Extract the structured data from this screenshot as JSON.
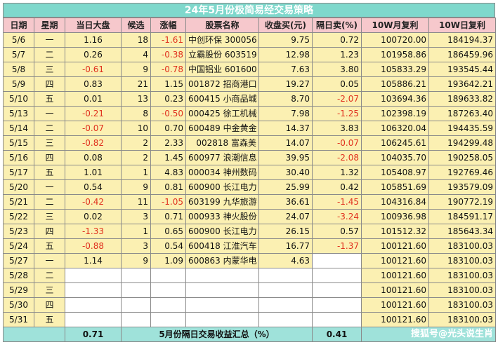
{
  "title": "24年5月份极简易经交易策略",
  "headers": [
    "日期",
    "星期",
    "当日大盘",
    "候选",
    "涨幅",
    "股票名称",
    "收盘买(元)",
    "隔日卖(%)",
    "10W月复利",
    "10W日复利"
  ],
  "rows": [
    {
      "date": "5/6",
      "weekday": "一",
      "market": "1.16",
      "candidates": "18",
      "gain": "-1.61",
      "stock": "中创环保 300056",
      "buy": "9.75",
      "sell": "0.72",
      "monthly": "100720.00",
      "daily": "184194.37"
    },
    {
      "date": "5/7",
      "weekday": "二",
      "market": "0.26",
      "candidates": "4",
      "gain": "-0.38",
      "stock": "立霸股份 603519",
      "buy": "12.98",
      "sell": "1.23",
      "monthly": "101958.86",
      "daily": "186459.96"
    },
    {
      "date": "5/8",
      "weekday": "三",
      "market": "-0.61",
      "candidates": "9",
      "gain": "-0.78",
      "stock": "中国铝业 601600",
      "buy": "7.63",
      "sell": "3.80",
      "monthly": "105833.29",
      "daily": "193545.44"
    },
    {
      "date": "5/9",
      "weekday": "四",
      "market": "0.83",
      "candidates": "21",
      "gain": "1.15",
      "stock": "001872 招商港口",
      "buy": "19.27",
      "sell": "0.05",
      "monthly": "105886.21",
      "daily": "193642.21"
    },
    {
      "date": "5/10",
      "weekday": "五",
      "market": "0.01",
      "candidates": "13",
      "gain": "0.23",
      "stock": "600415 小商品城",
      "buy": "8.70",
      "sell": "-2.07",
      "monthly": "103694.36",
      "daily": "189633.82"
    },
    {
      "date": "5/13",
      "weekday": "一",
      "market": "-0.21",
      "candidates": "8",
      "gain": "-0.50",
      "stock": "000425 徐工机械",
      "buy": "7.98",
      "sell": "-1.25",
      "monthly": "102398.19",
      "daily": "187263.40"
    },
    {
      "date": "5/14",
      "weekday": "二",
      "market": "-0.07",
      "candidates": "10",
      "gain": "0.70",
      "stock": "600489 中金黄金",
      "buy": "14.37",
      "sell": "3.83",
      "monthly": "106320.04",
      "daily": "194435.59"
    },
    {
      "date": "5/15",
      "weekday": "三",
      "market": "-0.82",
      "candidates": "2",
      "gain": "2.33",
      "stock": "002818 富森美",
      "buy": "14.07",
      "sell": "-0.07",
      "monthly": "106245.61",
      "daily": "194299.48"
    },
    {
      "date": "5/16",
      "weekday": "四",
      "market": "0.08",
      "candidates": "2",
      "gain": "1.45",
      "stock": "600977 浪潮信息",
      "buy": "39.95",
      "sell": "-2.08",
      "monthly": "104035.70",
      "daily": "190258.05"
    },
    {
      "date": "5/17",
      "weekday": "五",
      "market": "1.01",
      "candidates": "1",
      "gain": "4.83",
      "stock": "000034 神州数码",
      "buy": "30.40",
      "sell": "1.32",
      "monthly": "105408.97",
      "daily": "192769.46"
    },
    {
      "date": "5/20",
      "weekday": "一",
      "market": "0.54",
      "candidates": "9",
      "gain": "0.81",
      "stock": "600900 长江电力",
      "buy": "25.99",
      "sell": "0.42",
      "monthly": "105851.69",
      "daily": "193579.09"
    },
    {
      "date": "5/21",
      "weekday": "二",
      "market": "-0.42",
      "candidates": "11",
      "gain": "-1.05",
      "stock": "603199 九华旅游",
      "buy": "36.61",
      "sell": "-1.45",
      "monthly": "104316.84",
      "daily": "190772.19"
    },
    {
      "date": "5/22",
      "weekday": "三",
      "market": "0.02",
      "candidates": "3",
      "gain": "0.71",
      "stock": "000933 神火股份",
      "buy": "24.07",
      "sell": "-3.24",
      "monthly": "100936.98",
      "daily": "184591.17"
    },
    {
      "date": "5/23",
      "weekday": "四",
      "market": "-1.33",
      "candidates": "1",
      "gain": "0.65",
      "stock": "600900 长江电力",
      "buy": "26.15",
      "sell": "0.57",
      "monthly": "101512.32",
      "daily": "185643.34"
    },
    {
      "date": "5/24",
      "weekday": "五",
      "market": "-0.88",
      "candidates": "3",
      "gain": "0.54",
      "stock": "600418 江淮汽车",
      "buy": "16.77",
      "sell": "-1.37",
      "monthly": "100121.60",
      "daily": "183100.03"
    },
    {
      "date": "5/27",
      "weekday": "一",
      "market": "1.14",
      "candidates": "9",
      "gain": "1.09",
      "stock": "600863 内蒙华电",
      "buy": "4.63",
      "sell": "",
      "monthly": "100121.60",
      "daily": "183100.03"
    },
    {
      "date": "5/28",
      "weekday": "二",
      "market": "",
      "candidates": "",
      "gain": "",
      "stock": "",
      "buy": "",
      "sell": "",
      "monthly": "100121.60",
      "daily": "183100.03"
    },
    {
      "date": "5/29",
      "weekday": "三",
      "market": "",
      "candidates": "",
      "gain": "",
      "stock": "",
      "buy": "",
      "sell": "",
      "monthly": "100121.60",
      "daily": "183100.03"
    },
    {
      "date": "5/30",
      "weekday": "四",
      "market": "",
      "candidates": "",
      "gain": "",
      "stock": "",
      "buy": "",
      "sell": "",
      "monthly": "100121.60",
      "daily": "183100.03"
    },
    {
      "date": "5/31",
      "weekday": "五",
      "market": "",
      "candidates": "",
      "gain": "",
      "stock": "",
      "buy": "",
      "sell": "",
      "monthly": "100121.60",
      "daily": "183100.03"
    }
  ],
  "footer": {
    "market_total": "0.71",
    "summary_label": "5月份隔日交易收益汇总（%）",
    "sell_total": "0.41",
    "watermark": "搜狐号@光头说生肖"
  },
  "colors": {
    "title_bg": "#7fd8cc",
    "header_bg": "#f6c8cc",
    "row_bg": "#fbf0b2",
    "footer_bg": "#9fe2da",
    "negative": "#e0301e"
  }
}
